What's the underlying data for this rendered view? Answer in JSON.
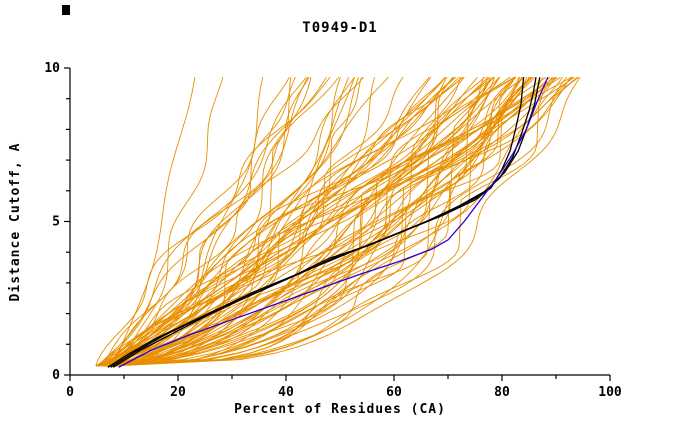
{
  "chart_data": {
    "type": "line",
    "title": "T0949-D1",
    "xlabel": "Percent of Residues (CA)",
    "ylabel": "Distance Cutoff, A",
    "xlim": [
      0,
      100
    ],
    "ylim": [
      0,
      10
    ],
    "xticks": [
      0,
      20,
      40,
      60,
      80,
      100
    ],
    "yticks": [
      0,
      5,
      10
    ],
    "x_minor_step": 10,
    "y_minor_step": 1,
    "grid": false,
    "legend": "none",
    "axis_color": "#000000",
    "highlight_series": [
      {
        "name": "model-black-1",
        "color": "#000000",
        "points": [
          [
            7,
            0.25
          ],
          [
            11,
            0.7
          ],
          [
            16,
            1.2
          ],
          [
            22,
            1.7
          ],
          [
            28,
            2.2
          ],
          [
            34,
            2.7
          ],
          [
            41,
            3.2
          ],
          [
            48,
            3.8
          ],
          [
            55,
            4.2
          ],
          [
            62,
            4.7
          ],
          [
            69,
            5.2
          ],
          [
            75,
            5.7
          ],
          [
            78,
            6.1
          ],
          [
            80,
            6.7
          ],
          [
            81.5,
            7.3
          ],
          [
            82.5,
            8.0
          ],
          [
            83.5,
            8.8
          ],
          [
            84,
            9.7
          ]
        ]
      },
      {
        "name": "model-black-2",
        "color": "#000000",
        "points": [
          [
            8,
            0.25
          ],
          [
            13,
            0.8
          ],
          [
            19,
            1.35
          ],
          [
            25,
            1.9
          ],
          [
            31,
            2.4
          ],
          [
            38,
            2.95
          ],
          [
            45,
            3.5
          ],
          [
            52,
            4.0
          ],
          [
            59,
            4.5
          ],
          [
            66,
            5.0
          ],
          [
            72,
            5.5
          ],
          [
            77,
            6.0
          ],
          [
            80.5,
            6.6
          ],
          [
            83,
            7.3
          ],
          [
            84.5,
            8.0
          ],
          [
            86,
            8.8
          ],
          [
            87,
            9.7
          ]
        ]
      },
      {
        "name": "model-black-3",
        "color": "#000000",
        "points": [
          [
            7.5,
            0.25
          ],
          [
            12,
            0.75
          ],
          [
            17.5,
            1.3
          ],
          [
            23.5,
            1.8
          ],
          [
            29.5,
            2.3
          ],
          [
            36,
            2.85
          ],
          [
            43,
            3.35
          ],
          [
            50,
            3.9
          ],
          [
            57,
            4.35
          ],
          [
            64,
            4.85
          ],
          [
            70.5,
            5.35
          ],
          [
            76,
            5.85
          ],
          [
            79.5,
            6.4
          ],
          [
            82,
            7.1
          ],
          [
            83.5,
            7.8
          ],
          [
            85,
            8.6
          ],
          [
            85.8,
            9.2
          ],
          [
            86.3,
            9.7
          ]
        ]
      },
      {
        "name": "model-blue",
        "color": "#2a00cc",
        "points": [
          [
            9,
            0.25
          ],
          [
            15,
            0.8
          ],
          [
            22,
            1.3
          ],
          [
            30,
            1.8
          ],
          [
            38,
            2.3
          ],
          [
            46,
            2.8
          ],
          [
            54,
            3.3
          ],
          [
            61,
            3.7
          ],
          [
            67,
            4.1
          ],
          [
            70,
            4.4
          ],
          [
            73,
            5.0
          ],
          [
            76,
            5.7
          ],
          [
            79,
            6.4
          ],
          [
            82,
            7.2
          ],
          [
            84.5,
            8.0
          ],
          [
            86.5,
            8.9
          ],
          [
            88.5,
            9.7
          ]
        ]
      }
    ],
    "ensemble": {
      "name": "server-model-curves",
      "color": "#e88f00",
      "count": 90,
      "seed": 11,
      "x_start": [
        4.5,
        9
      ],
      "x_end": [
        18,
        95
      ],
      "y_start": 0.3,
      "y_end": 9.7
    }
  }
}
